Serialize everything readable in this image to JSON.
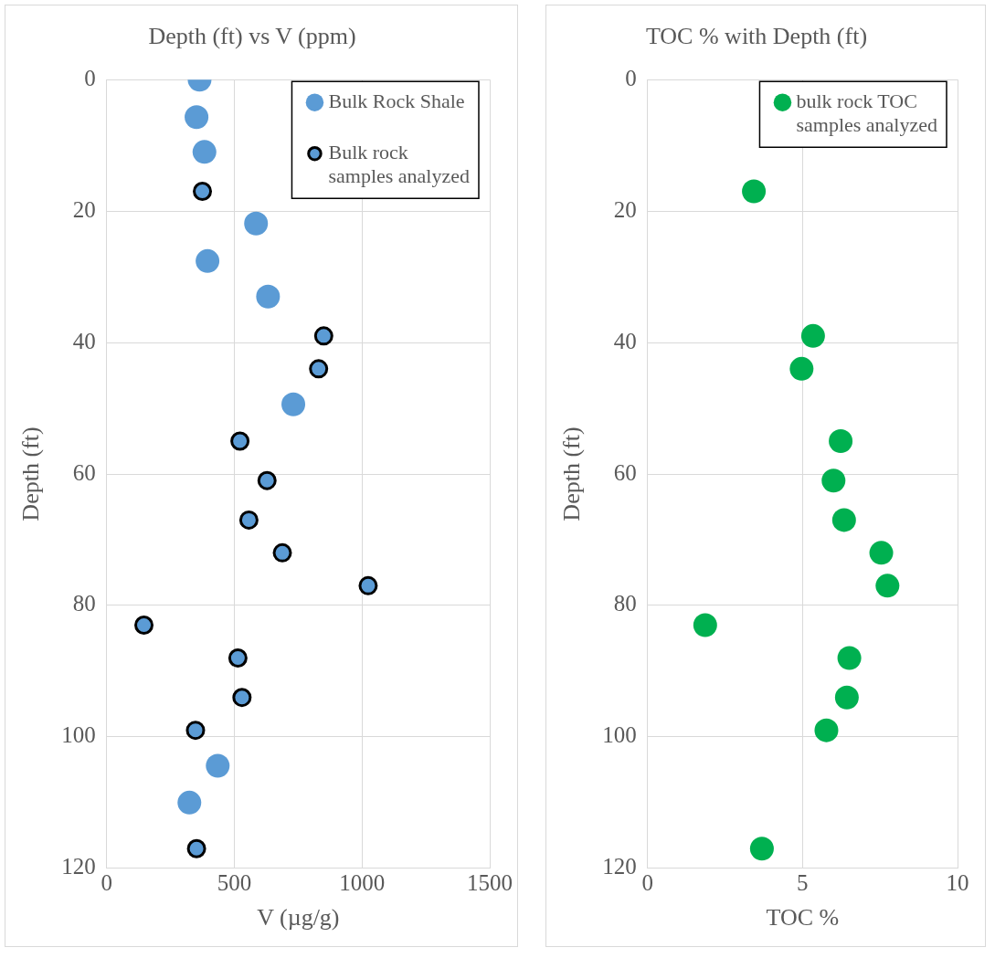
{
  "chart_data": [
    {
      "type": "scatter",
      "title": "Depth (ft) vs V (ppm)",
      "xlabel": "V (µg/g)",
      "ylabel": "Depth (ft)",
      "xlim": [
        0,
        1500
      ],
      "xticks": [
        0,
        500,
        1000,
        1500
      ],
      "ylim": [
        120,
        0
      ],
      "yticks": [
        0,
        20,
        40,
        60,
        80,
        100,
        120
      ],
      "grid": true,
      "legend": "top right",
      "marker": "circle",
      "series": [
        {
          "name": "Bulk Rock Shale",
          "color": "#5b9bd5",
          "x": [
            364,
            352,
            383,
            585,
            395,
            632,
            731,
            435,
            324
          ],
          "values": [
            0,
            5.7,
            11,
            21.9,
            27.6,
            33,
            49.4,
            104.4,
            110
          ]
        },
        {
          "name": "Bulk rock samples analyzed",
          "color": "#5b9bd5",
          "x": [
            375,
            850,
            830,
            522,
            628,
            557,
            688,
            1024,
            146,
            514,
            530,
            348,
            352
          ],
          "values": [
            17,
            39,
            44,
            55,
            61,
            67,
            72,
            77,
            83,
            88,
            94,
            99,
            117
          ]
        }
      ]
    },
    {
      "type": "scatter",
      "title": "TOC % with Depth (ft)",
      "xlabel": "TOC %",
      "ylabel": "Depth (ft)",
      "xlim": [
        0,
        10
      ],
      "xticks": [
        0,
        5,
        10
      ],
      "ylim": [
        120,
        0
      ],
      "yticks": [
        0,
        20,
        40,
        60,
        80,
        100,
        120
      ],
      "grid": true,
      "legend": "top right",
      "marker": "circle",
      "series": [
        {
          "name": "bulk rock TOC samples analyzed",
          "color": "#00b050",
          "x": [
            3.43,
            5.34,
            4.97,
            6.23,
            6.0,
            6.34,
            7.54,
            7.74,
            1.86,
            6.51,
            6.43,
            5.77,
            3.69
          ],
          "values": [
            17,
            39,
            44,
            55,
            61,
            67,
            72,
            77,
            83,
            88,
            94,
            99,
            117
          ]
        }
      ]
    }
  ]
}
